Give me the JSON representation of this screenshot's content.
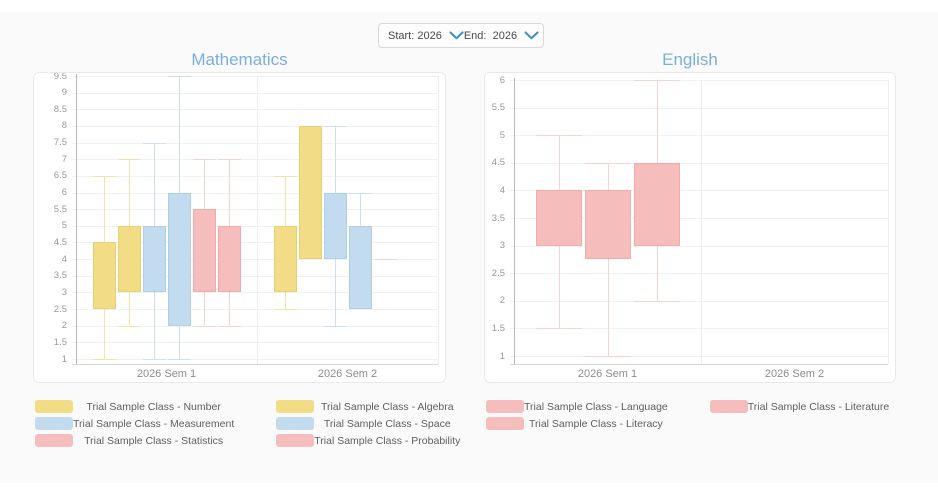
{
  "filter_bar": {
    "start_label": "Start:",
    "start_value": "2026",
    "end_label": "End:",
    "end_value": "2026"
  },
  "colors": {
    "title_blue": "#79afd9",
    "chevron_blue": "#4191ce",
    "panel_bg": "#fafafa",
    "series_yellow": "#f2dd86",
    "series_blue": "#c2dbee",
    "series_pink": "#f5bdbc"
  },
  "chart_data": [
    {
      "type": "boxplot",
      "title": "Mathematics",
      "categories": [
        "2026 Sem 1",
        "2026 Sem 2"
      ],
      "ylim": [
        1,
        9.5
      ],
      "y_step": 0.5,
      "grid": true,
      "legend_position": "bottom",
      "legend_columns": 2,
      "legend_order": [
        0,
        1,
        2,
        3,
        4,
        5
      ],
      "series": [
        {
          "name": "Trial Sample Class - Number",
          "color": "#f2dd86",
          "border_color": "#e7cf74",
          "whisker_color": "#f3e3a4",
          "boxes": [
            {
              "low": 1,
              "q1": 2.5,
              "q3": 4.5,
              "high": 6.5
            },
            {
              "low": 2.5,
              "q1": 3,
              "q3": 5,
              "high": 6.5
            }
          ]
        },
        {
          "name": "Trial Sample Class - Algebra",
          "color": "#f2dd86",
          "border_color": "#e7cf74",
          "whisker_color": "#f3e3a4",
          "boxes": [
            {
              "low": 2,
              "q1": 3,
              "q3": 5,
              "high": 7
            },
            {
              "low": 4,
              "q1": 4,
              "q3": 8,
              "high": 8
            }
          ]
        },
        {
          "name": "Trial Sample Class - Measurement",
          "color": "#c2dbee",
          "border_color": "#aecfe6",
          "whisker_color": "#cbe0f1",
          "boxes": [
            {
              "low": 1,
              "q1": 3,
              "q3": 5,
              "high": 7.5
            },
            {
              "low": 2,
              "q1": 4,
              "q3": 6,
              "high": 8
            }
          ]
        },
        {
          "name": "Trial Sample Class - Space",
          "color": "#c2dbee",
          "border_color": "#aecfe6",
          "whisker_color": "#cbe0f1",
          "boxes": [
            {
              "low": 1,
              "q1": 2,
              "q3": 6,
              "high": 9.5
            },
            {
              "low": 2.5,
              "q1": 2.5,
              "q3": 5,
              "high": 6
            }
          ]
        },
        {
          "name": "Trial Sample Class - Statistics",
          "color": "#f5bdbc",
          "border_color": "#f1aba9",
          "whisker_color": "#f7d2d1",
          "boxes": [
            {
              "low": 2,
              "q1": 3,
              "q3": 5.5,
              "high": 7
            },
            {
              "low": 4,
              "q1": 4,
              "q3": 4,
              "high": 4
            }
          ]
        },
        {
          "name": "Trial Sample Class - Probability",
          "color": "#f5bdbc",
          "border_color": "#f1aba9",
          "whisker_color": "#f7d2d1",
          "boxes": [
            {
              "low": 2,
              "q1": 3,
              "q3": 5,
              "high": 7
            },
            null
          ]
        }
      ]
    },
    {
      "type": "boxplot",
      "title": "English",
      "categories": [
        "2026 Sem 1",
        "2026 Sem 2"
      ],
      "ylim": [
        1,
        6
      ],
      "y_step": 0.5,
      "grid": true,
      "legend_position": "bottom",
      "legend_columns": 2,
      "legend_order": [
        0,
        2,
        1
      ],
      "series": [
        {
          "name": "Trial Sample Class - Language",
          "color": "#f5bdbc",
          "border_color": "#f1aba9",
          "whisker_color": "#f7d2d1",
          "boxes": [
            {
              "low": 1.5,
              "q1": 3,
              "q3": 4,
              "high": 5
            },
            null
          ]
        },
        {
          "name": "Trial Sample Class - Literacy",
          "color": "#f5bdbc",
          "border_color": "#f1aba9",
          "whisker_color": "#f7d2d1",
          "boxes": [
            {
              "low": 1,
              "q1": 2.75,
              "q3": 4,
              "high": 4.5
            },
            null
          ]
        },
        {
          "name": "Trial Sample Class - Literature",
          "color": "#f5bdbc",
          "border_color": "#f1aba9",
          "whisker_color": "#f7d2d1",
          "boxes": [
            {
              "low": 2,
              "q1": 3,
              "q3": 4.5,
              "high": 6
            },
            null
          ]
        }
      ]
    }
  ]
}
